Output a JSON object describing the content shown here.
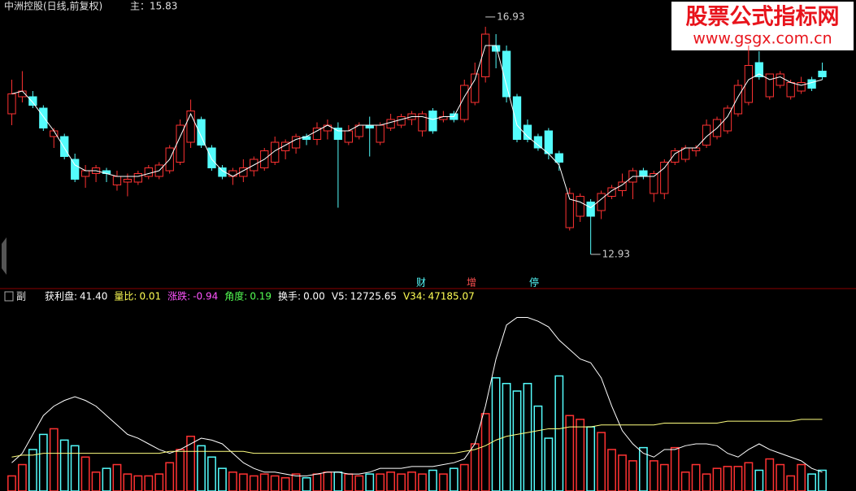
{
  "watermark": {
    "title": "股票公式指标网",
    "url": "www.gsgx.com.cn"
  },
  "chart_data": [
    {
      "type": "candlestick",
      "title": "中洲控股(日线,前复权)",
      "main": "主：15.83",
      "up_color": "#ff3232",
      "down_color": "#54fcfc",
      "ma_color": "#ffffff",
      "ylim": [
        12.4,
        17.4
      ],
      "events": [
        "财",
        "增",
        "停"
      ],
      "open": [
        15.4,
        15.7,
        15.7,
        15.5,
        15.0,
        15.0,
        14.6,
        14.3,
        14.35,
        14.4,
        14.15,
        14.2,
        14.2,
        14.3,
        14.3,
        14.4,
        14.55,
        14.9,
        15.3,
        14.8,
        14.45,
        14.3,
        14.3,
        14.4,
        14.45,
        14.55,
        14.75,
        14.8,
        15.0,
        14.95,
        15.1,
        15.15,
        14.9,
        15.0,
        15.2,
        14.9,
        15.15,
        15.2,
        15.3,
        15.1,
        15.45,
        15.3,
        15.4,
        15.3,
        15.6,
        16.05,
        16.6,
        16.5,
        15.7,
        15.2,
        15.0,
        15.1,
        14.7,
        13.4,
        13.6,
        13.85,
        13.7,
        13.95,
        14.05,
        14.2,
        14.4,
        14.0,
        14.0,
        14.55,
        14.6,
        14.75,
        14.85,
        15.0,
        15.1,
        15.4,
        15.6,
        16.3,
        15.7,
        15.9,
        15.7,
        15.8,
        16.0,
        16.15
      ],
      "high": [
        16.0,
        16.15,
        15.8,
        15.55,
        15.15,
        15.05,
        14.7,
        14.5,
        14.5,
        14.45,
        14.4,
        14.35,
        14.4,
        14.5,
        14.55,
        14.85,
        15.3,
        15.65,
        15.35,
        14.85,
        14.5,
        14.45,
        14.6,
        14.65,
        14.8,
        15.0,
        14.95,
        15.05,
        15.05,
        15.25,
        15.3,
        15.25,
        15.2,
        15.25,
        15.35,
        15.25,
        15.4,
        15.4,
        15.45,
        15.45,
        15.5,
        15.45,
        15.45,
        16.0,
        16.3,
        16.93,
        16.8,
        16.6,
        15.75,
        15.3,
        15.05,
        15.15,
        14.75,
        14.1,
        14.0,
        13.9,
        14.05,
        14.15,
        14.35,
        14.45,
        14.45,
        14.4,
        14.6,
        14.8,
        14.85,
        14.85,
        15.3,
        15.35,
        15.55,
        16.0,
        16.6,
        16.5,
        16.1,
        16.15,
        16.0,
        16.05,
        16.05,
        16.3
      ],
      "low": [
        15.2,
        15.6,
        15.5,
        15.1,
        14.8,
        14.6,
        14.2,
        14.1,
        14.2,
        14.2,
        14.05,
        13.95,
        14.15,
        14.25,
        14.25,
        14.35,
        14.5,
        14.8,
        14.8,
        14.4,
        14.25,
        14.15,
        14.2,
        14.3,
        14.4,
        14.5,
        14.6,
        14.7,
        14.85,
        14.85,
        14.95,
        13.75,
        14.85,
        14.95,
        14.65,
        14.85,
        15.1,
        15.15,
        15.2,
        15.0,
        15.05,
        15.25,
        15.25,
        15.25,
        15.55,
        15.95,
        16.2,
        15.6,
        14.9,
        14.9,
        14.75,
        14.6,
        14.4,
        13.35,
        13.5,
        12.93,
        13.55,
        13.9,
        13.95,
        13.9,
        14.25,
        13.85,
        13.9,
        14.5,
        14.55,
        14.65,
        14.8,
        14.95,
        15.05,
        15.35,
        15.55,
        16.0,
        15.65,
        15.85,
        15.65,
        15.75,
        15.8,
        16.0
      ],
      "close": [
        15.75,
        15.8,
        15.55,
        15.15,
        15.1,
        14.65,
        14.25,
        14.4,
        14.45,
        14.35,
        14.3,
        14.25,
        14.35,
        14.45,
        14.5,
        14.8,
        15.2,
        15.45,
        14.85,
        14.45,
        14.3,
        14.4,
        14.45,
        14.6,
        14.75,
        14.9,
        14.9,
        15.0,
        14.95,
        15.15,
        15.2,
        14.95,
        15.1,
        15.2,
        15.15,
        15.2,
        15.3,
        15.35,
        15.4,
        15.4,
        15.1,
        15.35,
        15.3,
        15.9,
        16.1,
        16.8,
        16.5,
        15.7,
        14.95,
        14.95,
        14.8,
        14.7,
        14.55,
        14.0,
        13.95,
        13.6,
        14.0,
        14.1,
        14.2,
        14.4,
        14.3,
        14.35,
        14.55,
        14.75,
        14.8,
        14.8,
        15.2,
        15.3,
        15.5,
        15.9,
        16.25,
        16.05,
        16.1,
        16.1,
        15.95,
        15.95,
        15.85,
        16.05
      ],
      "ma": [
        15.75,
        15.8,
        15.6,
        15.35,
        15.1,
        14.8,
        14.5,
        14.4,
        14.4,
        14.35,
        14.3,
        14.3,
        14.3,
        14.35,
        14.4,
        14.6,
        15.0,
        15.4,
        15.0,
        14.6,
        14.4,
        14.3,
        14.4,
        14.5,
        14.6,
        14.75,
        14.85,
        14.95,
        15.0,
        15.1,
        15.2,
        15.1,
        15.1,
        15.2,
        15.2,
        15.2,
        15.25,
        15.3,
        15.35,
        15.35,
        15.3,
        15.35,
        15.35,
        15.7,
        16.0,
        16.6,
        16.6,
        15.9,
        15.2,
        15.0,
        14.85,
        14.7,
        14.5,
        13.9,
        13.85,
        13.75,
        13.9,
        14.05,
        14.15,
        14.3,
        14.3,
        14.3,
        14.45,
        14.7,
        14.8,
        14.8,
        15.0,
        15.15,
        15.35,
        15.7,
        16.0,
        16.1,
        16.0,
        16.05,
        15.95,
        15.9,
        15.95,
        16.0
      ]
    },
    {
      "type": "bar",
      "name": "副",
      "ylim": [
        0,
        100
      ],
      "readouts": [
        {
          "label": "获利盘:",
          "value": "41.40",
          "color": "#ffffff"
        },
        {
          "label": "量比:",
          "value": "0.01",
          "color": "#ffff54"
        },
        {
          "label": "涨跌:",
          "value": "-0.94",
          "color": "#ff54ff"
        },
        {
          "label": "角度:",
          "value": "0.19",
          "color": "#54ff54"
        },
        {
          "label": "换手:",
          "value": "0.00",
          "color": "#ffffff"
        },
        {
          "label": "V5:",
          "value": "12725.65",
          "color": "#ffffff"
        },
        {
          "label": "V34:",
          "value": "47185.07",
          "color": "#ffff54"
        }
      ],
      "values": [
        8,
        14,
        22,
        30,
        33,
        27,
        24,
        18,
        10,
        12,
        14,
        9,
        8,
        8,
        9,
        15,
        22,
        29,
        24,
        18,
        12,
        10,
        9,
        8,
        9,
        8,
        7,
        9,
        7,
        9,
        10,
        10,
        9,
        8,
        9,
        9,
        10,
        9,
        10,
        9,
        11,
        9,
        12,
        14,
        25,
        41,
        60,
        57,
        53,
        57,
        45,
        28,
        61,
        40,
        38,
        34,
        31,
        22,
        19,
        16,
        23,
        16,
        14,
        23,
        10,
        14,
        9,
        12,
        13,
        13,
        15,
        11,
        17,
        14,
        8,
        14,
        9,
        11
      ],
      "series": [
        {
          "color": "#ffffff",
          "values": [
            15,
            20,
            30,
            40,
            45,
            48,
            50,
            48,
            45,
            40,
            35,
            30,
            28,
            25,
            22,
            20,
            22,
            25,
            28,
            27,
            25,
            20,
            15,
            12,
            10,
            10,
            9,
            8,
            8,
            9,
            10,
            10,
            9,
            9,
            10,
            12,
            12,
            12,
            13,
            13,
            13,
            14,
            15,
            17,
            25,
            45,
            70,
            88,
            92,
            92,
            90,
            87,
            80,
            75,
            70,
            68,
            60,
            45,
            32,
            25,
            20,
            18,
            22,
            22,
            24,
            25,
            25,
            24,
            20,
            18,
            22,
            25,
            22,
            20,
            18,
            16,
            12,
            10
          ]
        },
        {
          "color": "#ffff80",
          "values": [
            18,
            19,
            19,
            20,
            20,
            20,
            20,
            20,
            20,
            20,
            20,
            20,
            20,
            20,
            20,
            21,
            21,
            21,
            21,
            21,
            21,
            21,
            21,
            20,
            20,
            20,
            20,
            20,
            20,
            20,
            20,
            20,
            20,
            20,
            20,
            20,
            20,
            20,
            20,
            20,
            20,
            20,
            20,
            21,
            22,
            24,
            27,
            29,
            30,
            31,
            32,
            33,
            33,
            34,
            34,
            34,
            35,
            35,
            35,
            35,
            35,
            35,
            36,
            36,
            36,
            36,
            36,
            36,
            37,
            37,
            37,
            37,
            37,
            37,
            37,
            38,
            38,
            38
          ]
        }
      ]
    }
  ]
}
